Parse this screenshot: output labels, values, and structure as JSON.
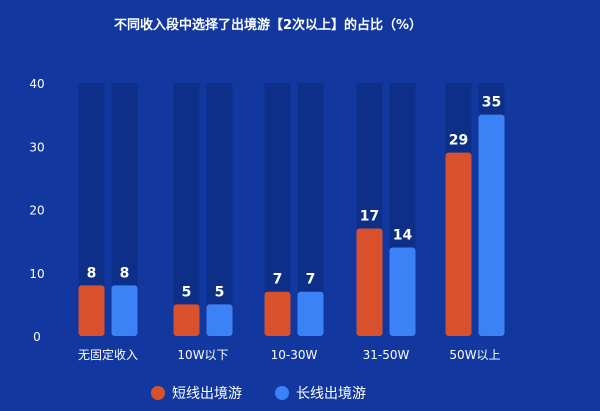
{
  "chart_data": {
    "type": "bar",
    "title": "不同收入段中选择了出境游【2次以上】的占比（%）",
    "xlabel": "",
    "ylabel": "",
    "categories": [
      "无固定收入",
      "10W以下",
      "10-30W",
      "31-50W",
      "50W以上"
    ],
    "series": [
      {
        "name": "短线出境游",
        "values": [
          8,
          5,
          7,
          17,
          29
        ],
        "color": "#d9512c"
      },
      {
        "name": "长线出境游",
        "values": [
          8,
          5,
          7,
          14,
          35
        ],
        "color": "#3b82f6"
      }
    ],
    "ylim": [
      0,
      40
    ],
    "yticks": [
      0,
      10,
      20,
      30,
      40
    ],
    "grid": false,
    "legend_position": "bottom-center",
    "background_color": "#1238a0",
    "track_color": "#0e2f88"
  }
}
